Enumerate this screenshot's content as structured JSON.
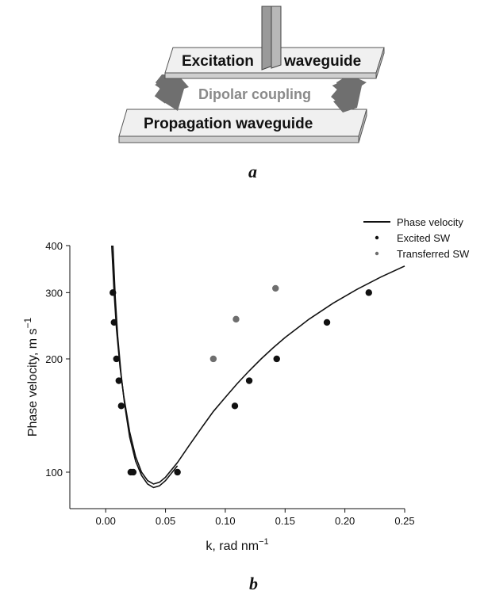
{
  "schematic": {
    "excitation_label": "Excitation",
    "excitation_label_2": "waveguide",
    "coupling_label": "Dipolar coupling",
    "propagation_label": "Propagation waveguide",
    "panel_label": "a",
    "colors": {
      "slab_top": "#f0f0f0",
      "slab_side": "#cfcfcf",
      "arrow": "#707070",
      "antenna": "#9a9a9a"
    }
  },
  "panel_b_label": "b",
  "chart_data": {
    "type": "scatter",
    "xlabel": "k, rad nm",
    "xlabel_sup": "−1",
    "ylabel": "Phase velocity, m s",
    "ylabel_sup": "−1",
    "xlim": [
      -0.03,
      0.25
    ],
    "ylim": [
      80,
      400
    ],
    "yscale": "log",
    "xticks": [
      0.0,
      0.05,
      0.1,
      0.15,
      0.2,
      0.25
    ],
    "xtick_labels": [
      "0.00",
      "0.05",
      "0.10",
      "0.15",
      "0.20",
      "0.25"
    ],
    "yticks": [
      100,
      200,
      300,
      400
    ],
    "ytick_labels": [
      "100",
      "200",
      "300",
      "400"
    ],
    "legend_position": "top-right",
    "legend": [
      "Phase velocity",
      "Excited SW",
      "Transferred SW"
    ],
    "curves": [
      {
        "x": [
          0.005,
          0.007,
          0.009,
          0.012,
          0.015,
          0.02,
          0.025,
          0.03,
          0.035,
          0.04,
          0.045,
          0.05,
          0.06,
          0.07,
          0.08,
          0.09,
          0.1,
          0.11,
          0.12,
          0.13,
          0.14,
          0.15,
          0.17,
          0.19,
          0.21,
          0.23,
          0.25
        ],
        "y": [
          400,
          300,
          240,
          190,
          160,
          128,
          110,
          100,
          95,
          93,
          94,
          97,
          106,
          118,
          131,
          145,
          158,
          172,
          186,
          200,
          214,
          228,
          255,
          281,
          306,
          330,
          353
        ]
      },
      {
        "x": [
          0.006,
          0.008,
          0.01,
          0.013,
          0.016,
          0.02,
          0.025,
          0.03,
          0.035,
          0.04,
          0.045,
          0.05,
          0.06
        ],
        "y": [
          400,
          290,
          230,
          180,
          150,
          124,
          107,
          98,
          93,
          91,
          92,
          95,
          104
        ]
      }
    ],
    "series": [
      {
        "name": "Excited SW",
        "color": "#111111",
        "x": [
          0.006,
          0.007,
          0.009,
          0.011,
          0.013,
          0.021,
          0.023,
          0.06,
          0.108,
          0.12,
          0.143,
          0.185,
          0.22
        ],
        "y": [
          300,
          250,
          200,
          175,
          150,
          100,
          100,
          100,
          150,
          175,
          200,
          250,
          300
        ]
      },
      {
        "name": "Transferred SW",
        "color": "#6e6e6e",
        "x": [
          0.09,
          0.109,
          0.142
        ],
        "y": [
          200,
          255,
          308
        ]
      }
    ]
  }
}
